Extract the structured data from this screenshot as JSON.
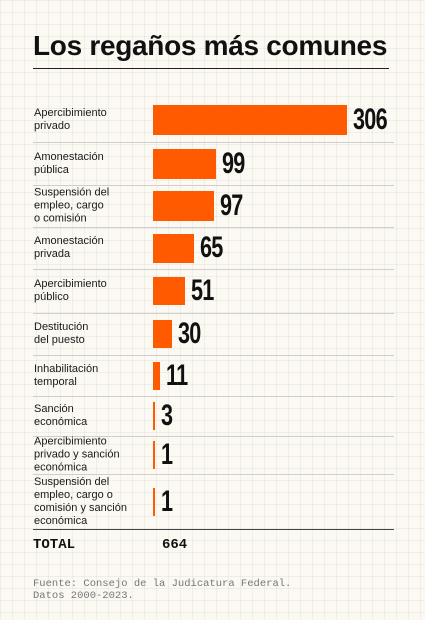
{
  "chart_data": {
    "type": "bar",
    "orientation": "horizontal",
    "title": "Los regaños más comunes",
    "categories": [
      "Apercibimiento privado",
      "Amonestación pública",
      "Suspensión del empleo, cargo o comisión",
      "Amonestación privada",
      "Apercibimiento público",
      "Destitución del puesto",
      "Inhabilitación temporal",
      "Sanción económica",
      "Apercibimiento privado y sanción económica",
      "Suspensión del empleo, cargo o comisión y sanción económica"
    ],
    "category_lines": [
      [
        "Apercibimiento",
        "privado"
      ],
      [
        "Amonestación",
        "pública"
      ],
      [
        "Suspensión del",
        "empleo, cargo",
        "o comisión"
      ],
      [
        "Amonestación",
        "privada"
      ],
      [
        "Apercibimiento",
        "público"
      ],
      [
        "Destitución",
        "del puesto"
      ],
      [
        "Inhabilitación",
        "temporal"
      ],
      [
        "Sanción",
        "económica"
      ],
      [
        "Apercibimiento",
        "privado y sanción",
        "económica"
      ],
      [
        "Suspensión del",
        "empleo, cargo o",
        "comisión y sanción",
        "económica"
      ]
    ],
    "values": [
      306,
      99,
      97,
      65,
      51,
      30,
      11,
      3,
      1,
      1
    ],
    "bar_color": "#ff5a00",
    "total_label": "TOTAL",
    "total_value": "664",
    "source": [
      "Fuente: Consejo de la Judicatura Federal.",
      "Datos 2000-2023."
    ]
  }
}
